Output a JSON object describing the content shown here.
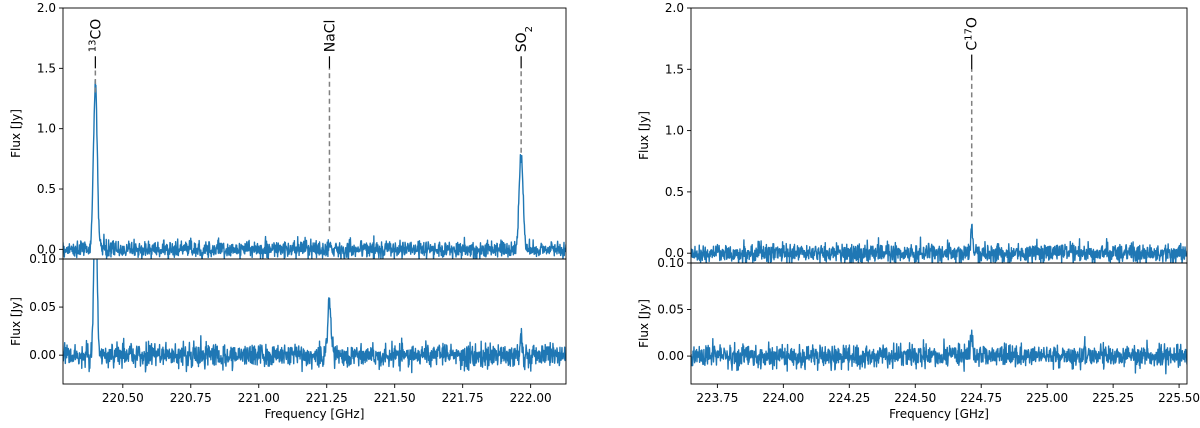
{
  "chart_data": [
    {
      "type": "line",
      "panel": "left-top",
      "xlim": [
        220.28,
        222.13
      ],
      "ylim": [
        -0.08,
        2.0
      ],
      "yticks": [
        0.0,
        0.5,
        1.0,
        1.5,
        2.0
      ],
      "ytick_labels": [
        "0.0",
        "0.5",
        "1.0",
        "1.5",
        "2.0"
      ],
      "xticks": [],
      "ylabel": "Flux [Jy]",
      "xlabel": "",
      "noise_rms": 0.035,
      "peaks": [
        {
          "x": 220.399,
          "value": 1.37,
          "width": 0.007
        },
        {
          "x": 221.26,
          "value": 0.05,
          "width": 0.004
        },
        {
          "x": 221.965,
          "value": 0.79,
          "width": 0.007
        }
      ],
      "line_markers": [
        {
          "x": 220.399,
          "dash_from": 1.3,
          "dash_to": 1.5,
          "tick_from": 1.5,
          "tick_to": 1.6,
          "label_base": "",
          "label_sup": "13",
          "label_main": "CO",
          "label_sub": ""
        },
        {
          "x": 221.26,
          "dash_from": 0.15,
          "dash_to": 1.5,
          "tick_from": 1.5,
          "tick_to": 1.6,
          "label_base": "NaCl",
          "label_sup": "",
          "label_main": "",
          "label_sub": ""
        },
        {
          "x": 221.965,
          "dash_from": 0.8,
          "dash_to": 1.5,
          "tick_from": 1.5,
          "tick_to": 1.6,
          "label_base": "SO",
          "label_sup": "",
          "label_main": "",
          "label_sub": "2"
        }
      ]
    },
    {
      "type": "line",
      "panel": "left-bottom",
      "xlim": [
        220.28,
        222.13
      ],
      "ylim": [
        -0.03,
        0.1
      ],
      "yticks": [
        0.0,
        0.05,
        0.1
      ],
      "ytick_labels": [
        "0.00",
        "0.05",
        "0.10"
      ],
      "xticks": [
        220.5,
        220.75,
        221.0,
        221.25,
        221.5,
        221.75,
        222.0
      ],
      "xtick_labels": [
        "220.50",
        "220.75",
        "221.00",
        "221.25",
        "221.50",
        "221.75",
        "222.00"
      ],
      "ylabel": "Flux [Jy]",
      "xlabel": "Frequency [GHz]",
      "noise_rms": 0.006,
      "peaks": [
        {
          "x": 220.399,
          "value": 0.16,
          "width": 0.006
        },
        {
          "x": 221.26,
          "value": 0.055,
          "width": 0.006
        },
        {
          "x": 221.965,
          "value": 0.02,
          "width": 0.004
        }
      ]
    },
    {
      "type": "line",
      "panel": "right-top",
      "xlim": [
        223.65,
        225.53
      ],
      "ylim": [
        -0.08,
        2.0
      ],
      "yticks": [
        0.0,
        0.5,
        1.0,
        1.5,
        2.0
      ],
      "ytick_labels": [
        "0.0",
        "0.5",
        "1.0",
        "1.5",
        "2.0"
      ],
      "xticks": [],
      "ylabel": "Flux [Jy]",
      "xlabel": "",
      "noise_rms": 0.04,
      "peaks": [
        {
          "x": 224.714,
          "value": 0.2,
          "width": 0.004
        }
      ],
      "line_markers": [
        {
          "x": 224.714,
          "dash_from": 0.3,
          "dash_to": 1.5,
          "tick_from": 1.5,
          "tick_to": 1.62,
          "label_base": "C",
          "label_sup": "17",
          "label_main": "O",
          "label_sub": ""
        }
      ]
    },
    {
      "type": "line",
      "panel": "right-bottom",
      "xlim": [
        223.65,
        225.53
      ],
      "ylim": [
        -0.03,
        0.1
      ],
      "yticks": [
        0.0,
        0.05,
        0.1
      ],
      "ytick_labels": [
        "0.00",
        "0.05",
        "0.10"
      ],
      "xticks": [
        223.75,
        224.0,
        224.25,
        224.5,
        224.75,
        225.0,
        225.25,
        225.5
      ],
      "xtick_labels": [
        "223.75",
        "224.00",
        "224.25",
        "224.50",
        "224.75",
        "225.00",
        "225.25",
        "225.50"
      ],
      "ylabel": "Flux [Jy]",
      "xlabel": "Frequency [GHz]",
      "noise_rms": 0.006,
      "peaks": [
        {
          "x": 224.714,
          "value": 0.022,
          "width": 0.004
        },
        {
          "x": 225.14,
          "value": 0.014,
          "width": 0.003
        }
      ]
    }
  ]
}
